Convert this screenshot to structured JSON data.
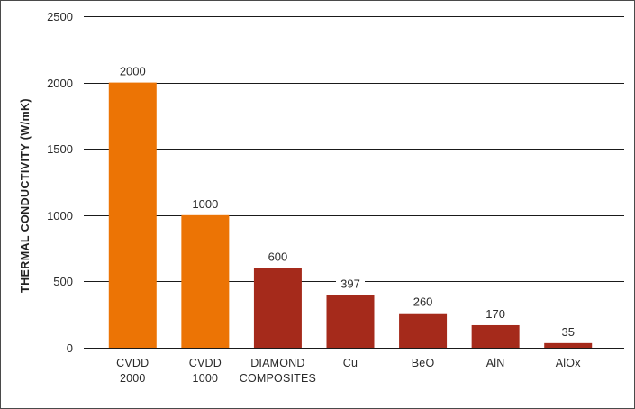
{
  "chart_data": {
    "type": "bar",
    "title": "",
    "xlabel": "",
    "ylabel": "THERMAL CONDUCTIVITY (W/mK)",
    "ylim": [
      0,
      2500
    ],
    "yticks": [
      0,
      500,
      1000,
      1500,
      2000,
      2500
    ],
    "grid": true,
    "categories": [
      [
        "CVDD",
        "2000"
      ],
      [
        "CVDD",
        "1000"
      ],
      [
        "DIAMOND",
        "COMPOSITES"
      ],
      [
        "Cu"
      ],
      [
        "BeO"
      ],
      [
        "AlN"
      ],
      [
        "AlOx"
      ]
    ],
    "values": [
      2000,
      1000,
      600,
      397,
      260,
      170,
      35
    ],
    "data_labels": [
      "2000",
      "1000",
      "600",
      "397",
      "260",
      "170",
      "35"
    ],
    "colors": [
      "#ec7405",
      "#ec7405",
      "#a52a1b",
      "#a52a1b",
      "#a52a1b",
      "#a52a1b",
      "#a52a1b"
    ]
  }
}
